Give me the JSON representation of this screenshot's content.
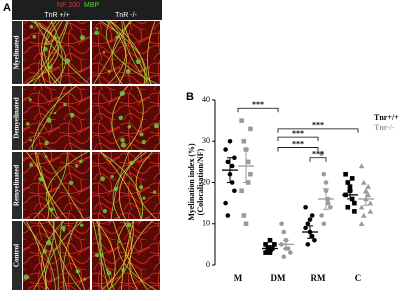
{
  "panel_a": {
    "label": "A",
    "stain_red": "NF 200",
    "stain_green": "MBP",
    "columns": [
      "TnR +/+",
      "TnR -/-"
    ],
    "rows": [
      "Myelinated",
      "Demyelinated",
      "Remyelinated",
      "Control"
    ]
  },
  "chart_data": {
    "type": "dotplot",
    "panel_label": "B",
    "y_label": [
      "Myelination index (%)",
      "(Colocalisation/NF)"
    ],
    "categories": [
      "M",
      "DM",
      "RM",
      "C"
    ],
    "ylim": [
      0,
      40
    ],
    "yticks": [
      0,
      10,
      20,
      30,
      40
    ],
    "series": [
      {
        "name": "Tnr+/+",
        "color": "#000000",
        "markers": [
          "circle",
          "square",
          "circle",
          "square"
        ],
        "means": [
          23,
          4,
          8,
          17
        ],
        "errors": [
          3,
          0.7,
          1.5,
          1
        ],
        "points": [
          [
            28,
            25,
            22,
            20,
            18,
            15,
            12,
            30,
            24,
            26
          ],
          [
            5,
            4,
            3,
            4,
            5,
            3,
            4,
            6
          ],
          [
            14,
            10,
            8,
            7,
            6,
            9,
            5,
            11,
            12
          ],
          [
            22,
            20,
            18,
            16,
            15,
            17,
            14,
            19,
            21,
            13
          ]
        ]
      },
      {
        "name": "Tnr-/-",
        "color": "#9a9a9a",
        "markers": [
          "square",
          "circle",
          "circle",
          "triangle"
        ],
        "means": [
          24,
          5,
          16,
          16
        ],
        "errors": [
          4,
          1,
          2.5,
          1.5
        ],
        "points": [
          [
            35,
            30,
            28,
            25,
            22,
            18,
            12,
            10,
            20,
            33
          ],
          [
            10,
            8,
            6,
            4,
            3,
            5,
            2,
            4
          ],
          [
            27,
            22,
            18,
            16,
            14,
            12,
            10,
            20,
            15
          ],
          [
            24,
            20,
            18,
            17,
            15,
            14,
            12,
            16,
            19,
            13,
            10
          ]
        ]
      }
    ],
    "brackets": [
      {
        "from": "M",
        "to": "DM",
        "y": 38,
        "label": "***"
      },
      {
        "from": "DM",
        "to": "C",
        "y": 33,
        "label": "***"
      },
      {
        "from": "DM",
        "to": "RM",
        "y": 31,
        "label": "***"
      },
      {
        "from": "DM",
        "to": "RM",
        "y": 28.5,
        "label": "***"
      },
      {
        "from": "RM",
        "to": "RM",
        "y": 26,
        "label": "***"
      }
    ]
  }
}
